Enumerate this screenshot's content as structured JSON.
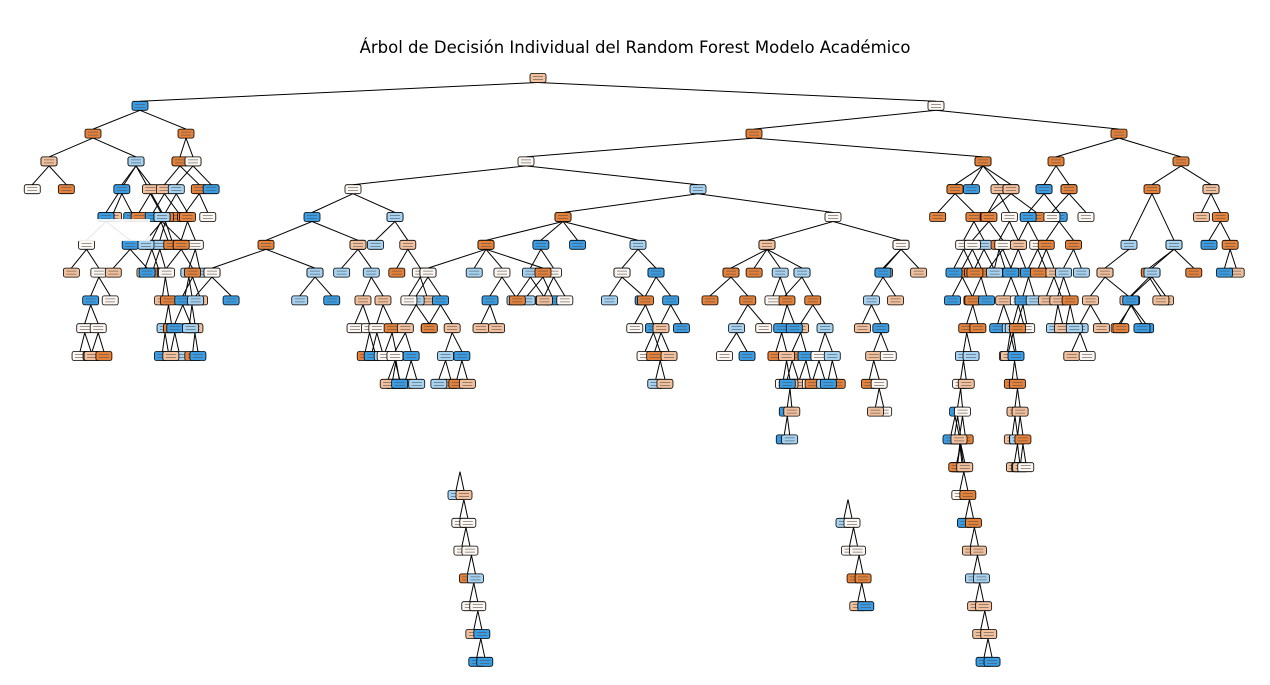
{
  "figure": {
    "title": "Árbol de Decisión Individual del Random Forest Modelo Académico"
  },
  "palette": {
    "orange_strong": "#e58139",
    "orange_light": "#f2c09c",
    "white_neutral": "#fdf6f1",
    "blue_light": "#a7d3f3",
    "blue_strong": "#399de5",
    "edge": "#000000"
  },
  "node_shape": "rounded-box",
  "node_text_visible": false
}
